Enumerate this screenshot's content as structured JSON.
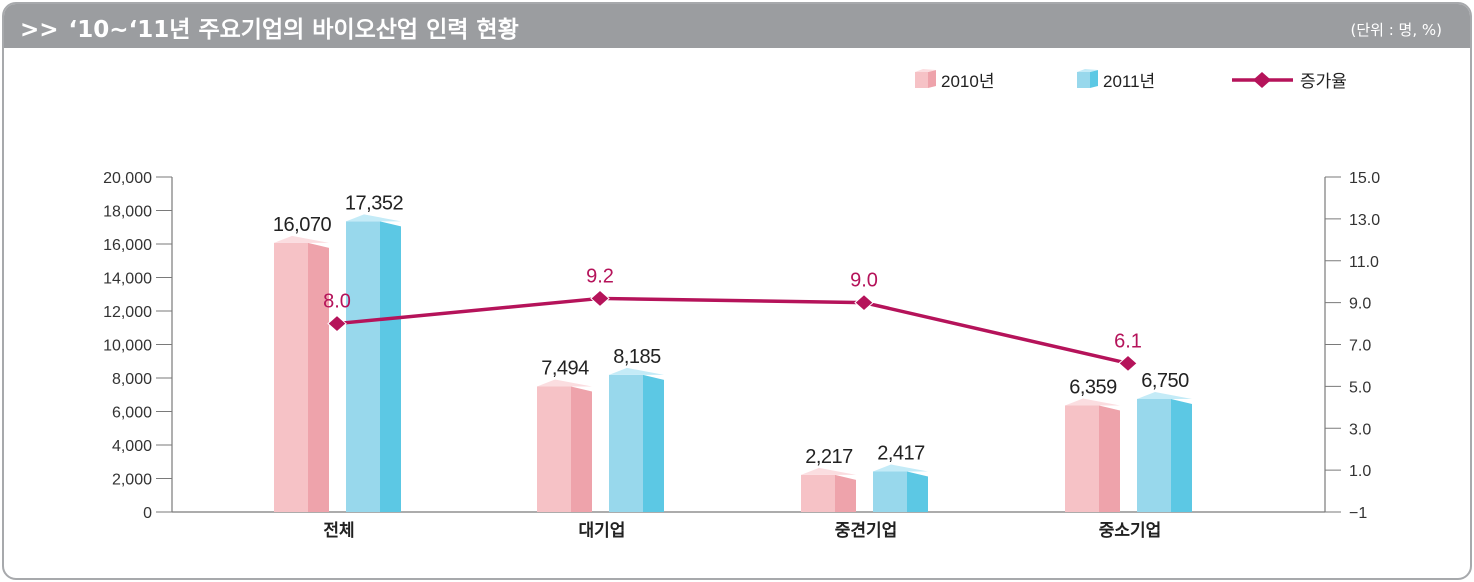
{
  "header": {
    "prefix": ">>",
    "title": "‘10~‘11년 주요기업의 바이오산업 인력 현황",
    "unit": "(단위 : 명, %)"
  },
  "colors": {
    "header_bg": "#9b9da0",
    "bar2010_front": "#f6c2c6",
    "bar2010_side": "#eea3ab",
    "bar2010_top": "#fbdde0",
    "bar2011_front": "#98d8ec",
    "bar2011_side": "#5cc8e4",
    "bar2011_top": "#c4ebf7",
    "line": "#b5135a",
    "axis": "#7a7a7a",
    "text": "#333333"
  },
  "chart_data": {
    "type": "bar",
    "categories": [
      "전체",
      "대기업",
      "중견기업",
      "중소기업"
    ],
    "series": [
      {
        "name": "2010년",
        "values": [
          16070,
          7494,
          2217,
          6359
        ],
        "labels": [
          "16,070",
          "7,494",
          "2,217",
          "6,359"
        ]
      },
      {
        "name": "2011년",
        "values": [
          17352,
          8185,
          2417,
          6750
        ],
        "labels": [
          "17,352",
          "8,185",
          "2,417",
          "6,750"
        ]
      }
    ],
    "line_series": {
      "name": "증가율",
      "values": [
        8.0,
        9.2,
        9.0,
        6.1
      ],
      "labels": [
        "8.0",
        "9.2",
        "9.0",
        "6.1"
      ]
    },
    "ylim": [
      0,
      20000
    ],
    "y_ticks": [
      0,
      2000,
      4000,
      6000,
      8000,
      10000,
      12000,
      14000,
      16000,
      18000,
      20000
    ],
    "y_tick_labels": [
      "0",
      "2,000",
      "4,000",
      "6,000",
      "8,000",
      "10,000",
      "12,000",
      "14,000",
      "16,000",
      "18,000",
      "20,000"
    ],
    "y2lim": [
      -1,
      15
    ],
    "y2_ticks": [
      -1,
      1,
      3,
      5,
      7,
      9,
      11,
      13,
      15
    ],
    "y2_tick_labels": [
      "−1",
      "1.0",
      "3.0",
      "5.0",
      "7.0",
      "9.0",
      "11.0",
      "13.0",
      "15.0"
    ],
    "legend": [
      "2010년",
      "2011년",
      "증가율"
    ],
    "legend_position": "top-right",
    "grid": false
  }
}
